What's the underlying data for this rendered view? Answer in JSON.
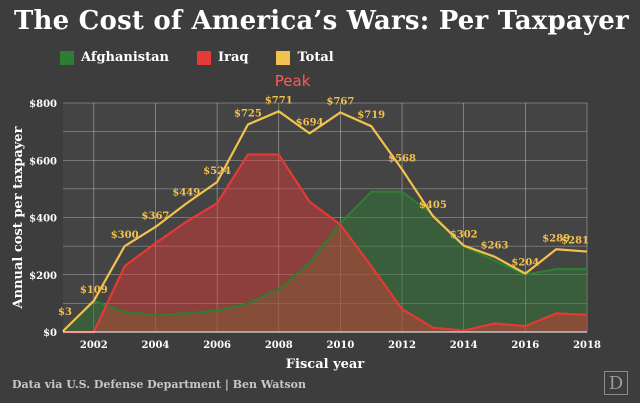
{
  "title": "The Cost of America’s Wars: Per Taxpayer",
  "source": "Data via U.S. Defense Department | Ben Watson",
  "logo_letter": "D",
  "colors": {
    "afghanistan": "#2e7d32",
    "iraq": "#e53935",
    "total": "#f2c14e",
    "background": "#3d3d3d",
    "grid": "#ffffff"
  },
  "chart_data": {
    "type": "area",
    "title": "The Cost of America’s Wars: Per Taxpayer",
    "xlabel": "Fiscal year",
    "ylabel": "Annual cost per taxpayer",
    "x": [
      2001,
      2002,
      2003,
      2004,
      2005,
      2006,
      2007,
      2008,
      2009,
      2010,
      2011,
      2012,
      2013,
      2014,
      2015,
      2016,
      2017,
      2018
    ],
    "xlim": [
      2001,
      2018
    ],
    "ylim": [
      0,
      800
    ],
    "x_ticks": [
      "2002",
      "2004",
      "2006",
      "2008",
      "2010",
      "2012",
      "2014",
      "2016",
      "2018"
    ],
    "x_tick_values": [
      2002,
      2004,
      2006,
      2008,
      2010,
      2012,
      2014,
      2016,
      2018
    ],
    "y_ticks": [
      "$0",
      "$200",
      "$400",
      "$600",
      "$800"
    ],
    "y_tick_values": [
      0,
      200,
      400,
      600,
      800
    ],
    "grid": true,
    "legend_position": "top-left",
    "series": [
      {
        "name": "Afghanistan",
        "color": "#2e7d32",
        "values": [
          3,
          109,
          70,
          60,
          65,
          75,
          100,
          150,
          240,
          380,
          490,
          490,
          410,
          300,
          250,
          200,
          220,
          220
        ]
      },
      {
        "name": "Iraq",
        "color": "#e53935",
        "values": [
          0,
          0,
          230,
          310,
          385,
          450,
          620,
          620,
          455,
          375,
          230,
          80,
          15,
          5,
          30,
          20,
          65,
          60
        ]
      },
      {
        "name": "Total",
        "color": "#f2c14e",
        "values": [
          3,
          109,
          300,
          367,
          449,
          524,
          725,
          771,
          694,
          767,
          719,
          568,
          405,
          302,
          263,
          204,
          289,
          281
        ]
      }
    ],
    "data_labels": [
      {
        "x": 2001,
        "text": "$3"
      },
      {
        "x": 2002,
        "text": "$109"
      },
      {
        "x": 2003,
        "text": "$300"
      },
      {
        "x": 2004,
        "text": "$367"
      },
      {
        "x": 2005,
        "text": "$449"
      },
      {
        "x": 2006,
        "text": "$524"
      },
      {
        "x": 2007,
        "text": "$725"
      },
      {
        "x": 2008,
        "text": "$771"
      },
      {
        "x": 2009,
        "text": "$694"
      },
      {
        "x": 2010,
        "text": "$767"
      },
      {
        "x": 2011,
        "text": "$719"
      },
      {
        "x": 2012,
        "text": "$568"
      },
      {
        "x": 2013,
        "text": "$405"
      },
      {
        "x": 2014,
        "text": "$302"
      },
      {
        "x": 2015,
        "text": "$263"
      },
      {
        "x": 2016,
        "text": "$204"
      },
      {
        "x": 2017,
        "text": "$289"
      },
      {
        "x": 2018,
        "text": "$281"
      }
    ],
    "annotations": [
      {
        "text": "Peak",
        "x": 2009,
        "color": "#ff5a5a"
      }
    ]
  }
}
